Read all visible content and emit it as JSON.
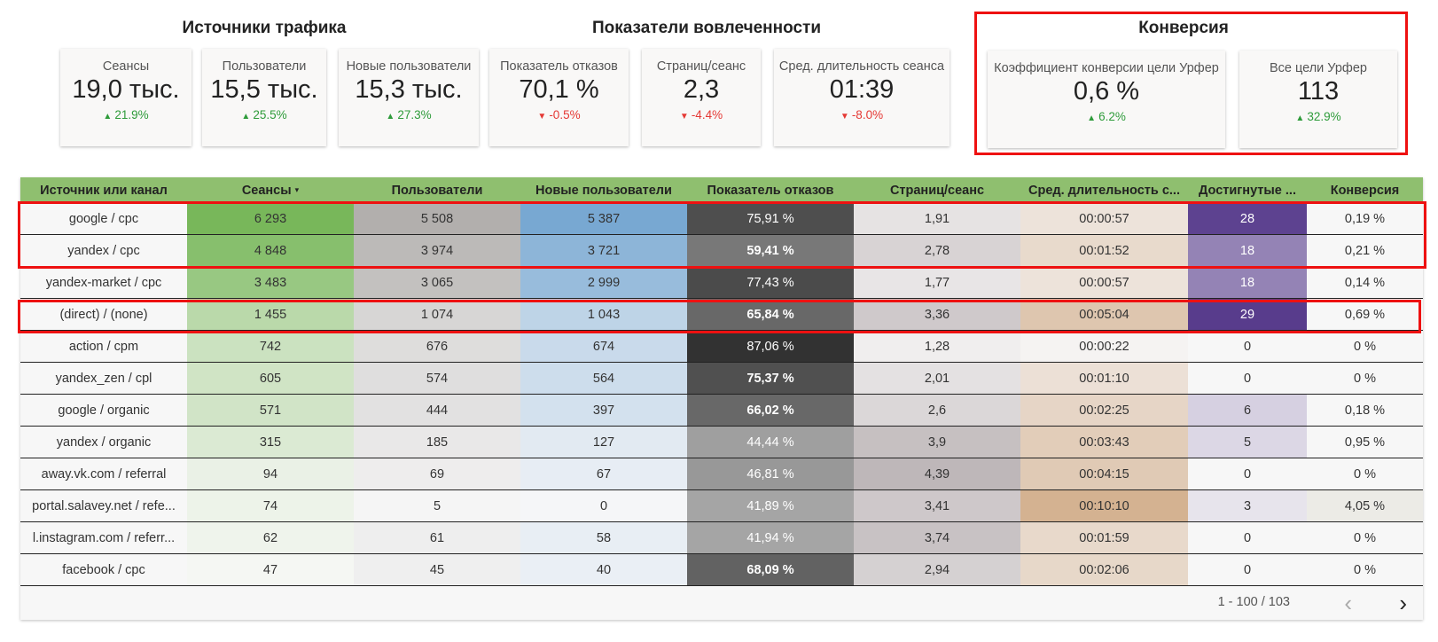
{
  "sections": {
    "traffic": "Источники трафика",
    "engagement": "Показатели вовлеченности",
    "conversion": "Конверсия"
  },
  "kpis": [
    {
      "label": "Сеансы",
      "value": "19,0 тыс.",
      "delta": "21.9%",
      "dir": "up"
    },
    {
      "label": "Пользователи",
      "value": "15,5 тыс.",
      "delta": "25.5%",
      "dir": "up"
    },
    {
      "label": "Новые пользователи",
      "value": "15,3 тыс.",
      "delta": "27.3%",
      "dir": "up"
    },
    {
      "label": "Показатель отказов",
      "value": "70,1 %",
      "delta": "-0.5%",
      "dir": "down"
    },
    {
      "label": "Страниц/сеанс",
      "value": "2,3",
      "delta": "-4.4%",
      "dir": "down"
    },
    {
      "label": "Сред. длительность сеанса",
      "value": "01:39",
      "delta": "-8.0%",
      "dir": "down"
    },
    {
      "label": "Коэффициент конверсии цели Урфер",
      "value": "0,6 %",
      "delta": "6.2%",
      "dir": "up"
    },
    {
      "label": "Все цели Урфер",
      "value": "113",
      "delta": "32.9%",
      "dir": "up"
    }
  ],
  "icons": {
    "up": "arrow-up-icon",
    "down": "arrow-down-icon"
  },
  "colors": {
    "header_green": "#8fbf6f",
    "highlight_red": "#ee1111",
    "up": "#2e9b3a",
    "down": "#e53935"
  },
  "table": {
    "columns": [
      "Источник или канал",
      "Сеансы",
      "Пользователи",
      "Новые пользователи",
      "Показатель отказов",
      "Страниц/сеанс",
      "Сред. длительность с...",
      "Достигнутые ...",
      "Конверсия"
    ],
    "sort_indicator": "▾",
    "rows": [
      [
        "google / cpc",
        "6 293",
        "5 508",
        "5 387",
        "75,91 %",
        "1,91",
        "00:00:57",
        "28",
        "0,19 %"
      ],
      [
        "yandex / cpc",
        "4 848",
        "3 974",
        "3 721",
        "59,41 %",
        "2,78",
        "00:01:52",
        "18",
        "0,21 %"
      ],
      [
        "yandex-market / cpc",
        "3 483",
        "3 065",
        "2 999",
        "77,43 %",
        "1,77",
        "00:00:57",
        "18",
        "0,14 %"
      ],
      [
        "(direct) / (none)",
        "1 455",
        "1 074",
        "1 043",
        "65,84 %",
        "3,36",
        "00:05:04",
        "29",
        "0,69 %"
      ],
      [
        "action / cpm",
        "742",
        "676",
        "674",
        "87,06 %",
        "1,28",
        "00:00:22",
        "0",
        "0 %"
      ],
      [
        "yandex_zen / cpl",
        "605",
        "574",
        "564",
        "75,37 %",
        "2,01",
        "00:01:10",
        "0",
        "0 %"
      ],
      [
        "google / organic",
        "571",
        "444",
        "397",
        "66,02 %",
        "2,6",
        "00:02:25",
        "6",
        "0,18 %"
      ],
      [
        "yandex / organic",
        "315",
        "185",
        "127",
        "44,44 %",
        "3,9",
        "00:03:43",
        "5",
        "0,95 %"
      ],
      [
        "away.vk.com / referral",
        "94",
        "69",
        "67",
        "46,81 %",
        "4,39",
        "00:04:15",
        "0",
        "0 %"
      ],
      [
        "portal.salavey.net / refe...",
        "74",
        "5",
        "0",
        "41,89 %",
        "3,41",
        "00:10:10",
        "3",
        "4,05 %"
      ],
      [
        "l.instagram.com / referr...",
        "62",
        "61",
        "58",
        "41,94 %",
        "3,74",
        "00:01:59",
        "0",
        "0 %"
      ],
      [
        "facebook / cpc",
        "47",
        "45",
        "40",
        "68,09 %",
        "2,94",
        "00:02:06",
        "0",
        "0 %"
      ]
    ],
    "pagination": "1 - 100 / 103",
    "prev_icon": "chevron-left-icon",
    "next_icon": "chevron-right-icon"
  }
}
